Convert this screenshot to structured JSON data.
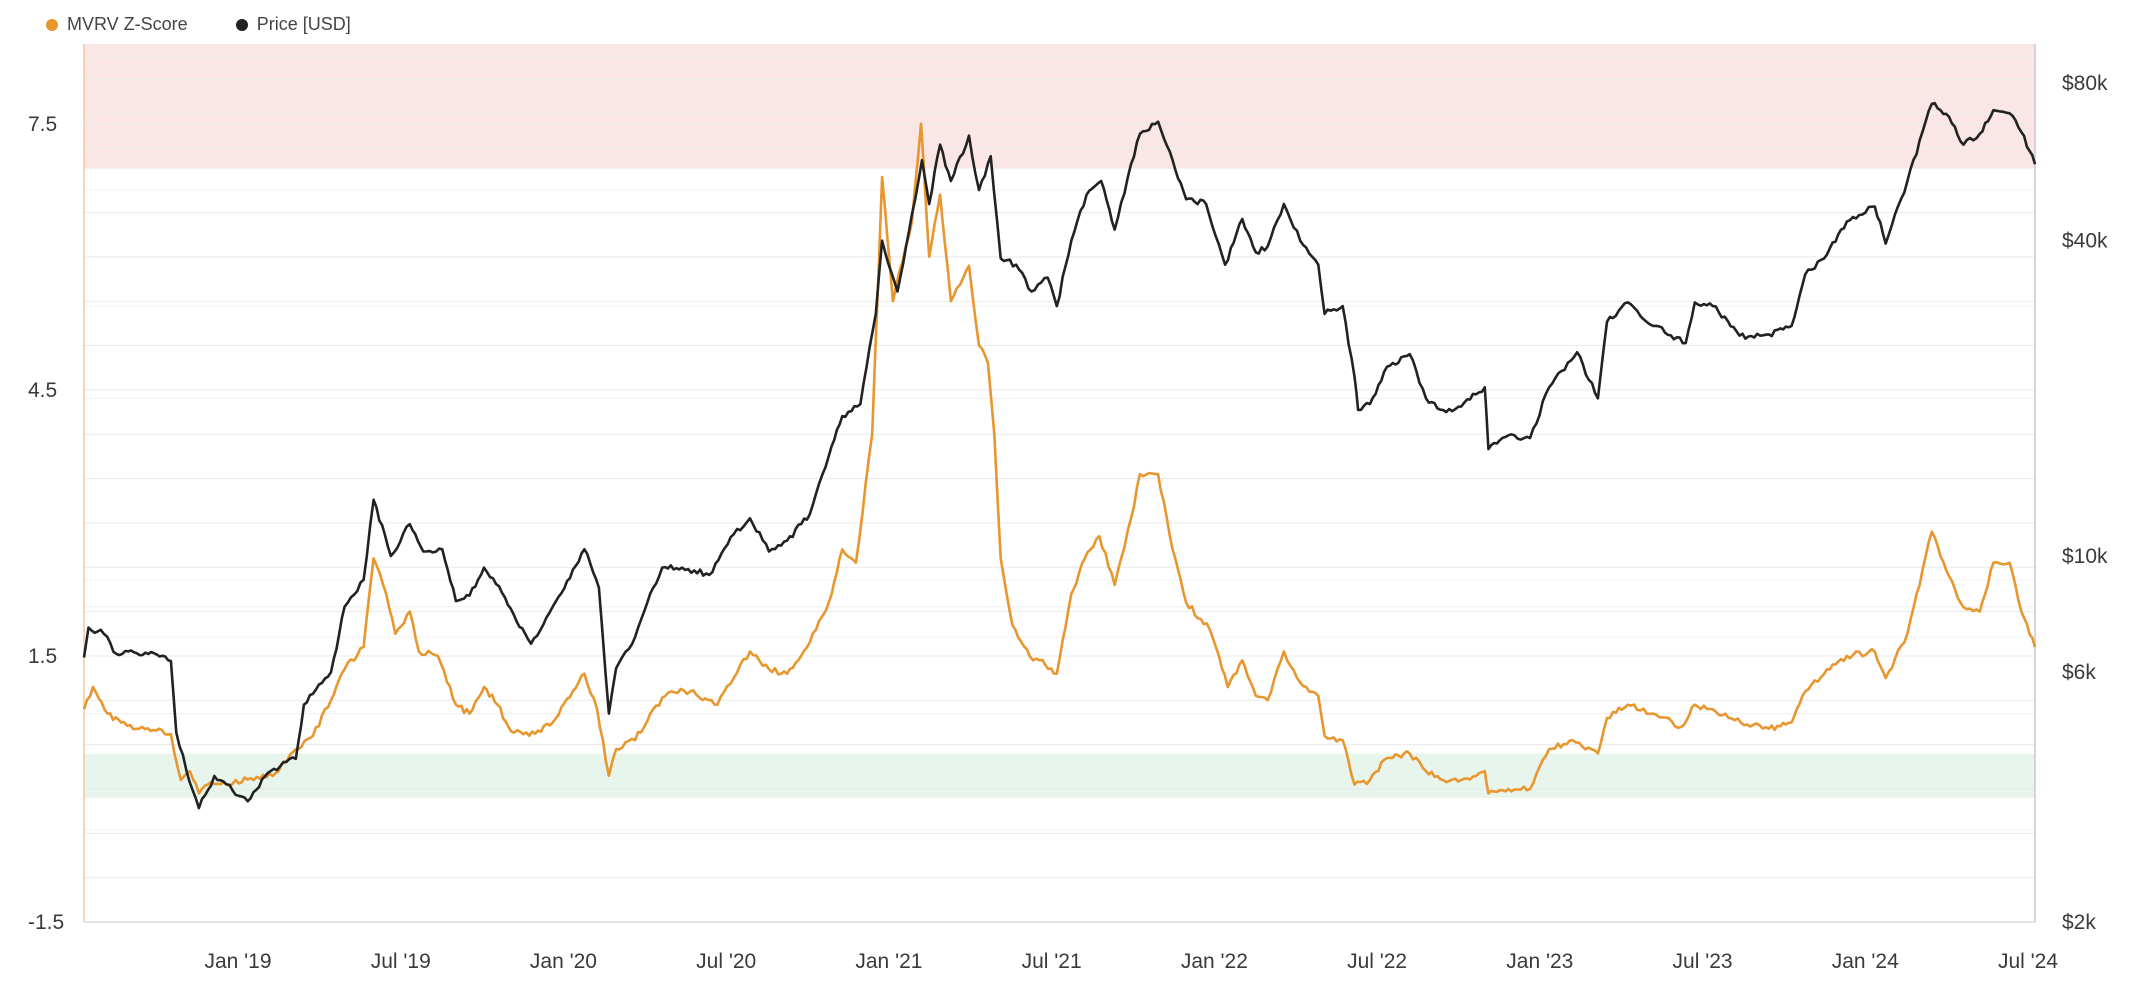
{
  "legend": {
    "items": [
      {
        "label": "MVRV Z-Score",
        "color": "#e8962e"
      },
      {
        "label": "Price [USD]",
        "color": "#222222"
      }
    ]
  },
  "chart_data": {
    "type": "line",
    "x_ticks": [
      "Jan '19",
      "Jul '19",
      "Jan '20",
      "Jul '20",
      "Jan '21",
      "Jul '21",
      "Jan '22",
      "Jul '22",
      "Jan '23",
      "Jul '23",
      "Jan '24",
      "Jul '24"
    ],
    "x_range": [
      "2018-08-10",
      "2024-07-05"
    ],
    "left_axis": {
      "ticks": [
        "7.5",
        "4.5",
        "1.5",
        "-1.5"
      ],
      "values": [
        7.5,
        4.5,
        1.5,
        -1.5
      ],
      "ylim": [
        -1.5,
        8.4
      ]
    },
    "right_axis": {
      "scale": "log",
      "ticks": [
        "$80k",
        "$40k",
        "$10k",
        "$6k",
        "$2k"
      ],
      "values": [
        80000,
        40000,
        10000,
        6000,
        2000
      ],
      "ylim": [
        2000,
        95000
      ]
    },
    "zones": [
      {
        "name": "overvalued",
        "from": 7.0,
        "to": 9.0,
        "color": "#fbe6e6"
      },
      {
        "name": "undervalued",
        "from": -0.1,
        "to": 0.4,
        "color": "#e8f5ec"
      }
    ],
    "series": [
      {
        "name": "MVRV Z-Score",
        "color": "#e8962e",
        "axis": "left",
        "points": [
          [
            "2018-08-10",
            0.9
          ],
          [
            "2018-08-20",
            1.15
          ],
          [
            "2018-09-05",
            0.85
          ],
          [
            "2018-09-20",
            0.75
          ],
          [
            "2018-10-10",
            0.68
          ],
          [
            "2018-11-01",
            0.68
          ],
          [
            "2018-11-14",
            0.62
          ],
          [
            "2018-11-25",
            0.1
          ],
          [
            "2018-12-05",
            0.2
          ],
          [
            "2018-12-15",
            -0.05
          ],
          [
            "2018-12-25",
            0.05
          ],
          [
            "2019-01-15",
            0.05
          ],
          [
            "2019-02-10",
            0.12
          ],
          [
            "2019-03-10",
            0.18
          ],
          [
            "2019-04-01",
            0.45
          ],
          [
            "2019-04-20",
            0.6
          ],
          [
            "2019-05-10",
            1.0
          ],
          [
            "2019-05-25",
            1.35
          ],
          [
            "2019-06-15",
            1.6
          ],
          [
            "2019-06-26",
            2.6
          ],
          [
            "2019-07-10",
            2.2
          ],
          [
            "2019-07-20",
            1.75
          ],
          [
            "2019-08-05",
            2.0
          ],
          [
            "2019-08-15",
            1.55
          ],
          [
            "2019-09-05",
            1.5
          ],
          [
            "2019-09-25",
            0.95
          ],
          [
            "2019-10-10",
            0.85
          ],
          [
            "2019-10-26",
            1.15
          ],
          [
            "2019-11-10",
            0.95
          ],
          [
            "2019-11-25",
            0.65
          ],
          [
            "2019-12-15",
            0.6
          ],
          [
            "2020-01-10",
            0.75
          ],
          [
            "2020-02-14",
            1.3
          ],
          [
            "2020-02-28",
            0.9
          ],
          [
            "2020-03-12",
            0.15
          ],
          [
            "2020-03-20",
            0.45
          ],
          [
            "2020-04-10",
            0.55
          ],
          [
            "2020-04-30",
            0.9
          ],
          [
            "2020-05-20",
            1.1
          ],
          [
            "2020-06-10",
            1.1
          ],
          [
            "2020-07-10",
            0.95
          ],
          [
            "2020-07-28",
            1.25
          ],
          [
            "2020-08-15",
            1.55
          ],
          [
            "2020-09-05",
            1.35
          ],
          [
            "2020-09-25",
            1.3
          ],
          [
            "2020-10-20",
            1.65
          ],
          [
            "2020-11-10",
            2.1
          ],
          [
            "2020-11-25",
            2.7
          ],
          [
            "2020-12-10",
            2.55
          ],
          [
            "2020-12-28",
            4.0
          ],
          [
            "2021-01-08",
            6.9
          ],
          [
            "2021-01-20",
            5.5
          ],
          [
            "2021-02-10",
            6.4
          ],
          [
            "2021-02-20",
            7.5
          ],
          [
            "2021-03-01",
            6.0
          ],
          [
            "2021-03-13",
            6.7
          ],
          [
            "2021-03-25",
            5.5
          ],
          [
            "2021-04-14",
            5.9
          ],
          [
            "2021-04-25",
            5.0
          ],
          [
            "2021-05-05",
            4.8
          ],
          [
            "2021-05-12",
            4.0
          ],
          [
            "2021-05-19",
            2.6
          ],
          [
            "2021-06-01",
            1.85
          ],
          [
            "2021-06-20",
            1.5
          ],
          [
            "2021-07-01",
            1.45
          ],
          [
            "2021-07-20",
            1.3
          ],
          [
            "2021-08-05",
            2.2
          ],
          [
            "2021-08-20",
            2.6
          ],
          [
            "2021-09-05",
            2.85
          ],
          [
            "2021-09-22",
            2.3
          ],
          [
            "2021-10-10",
            3.05
          ],
          [
            "2021-10-20",
            3.55
          ],
          [
            "2021-11-09",
            3.55
          ],
          [
            "2021-11-25",
            2.7
          ],
          [
            "2021-12-10",
            2.1
          ],
          [
            "2022-01-05",
            1.8
          ],
          [
            "2022-01-25",
            1.15
          ],
          [
            "2022-02-10",
            1.45
          ],
          [
            "2022-02-25",
            1.05
          ],
          [
            "2022-03-10",
            1.0
          ],
          [
            "2022-03-28",
            1.55
          ],
          [
            "2022-04-15",
            1.2
          ],
          [
            "2022-05-05",
            1.05
          ],
          [
            "2022-05-12",
            0.6
          ],
          [
            "2022-06-01",
            0.55
          ],
          [
            "2022-06-14",
            0.05
          ],
          [
            "2022-07-01",
            0.1
          ],
          [
            "2022-07-20",
            0.35
          ],
          [
            "2022-08-14",
            0.4
          ],
          [
            "2022-09-01",
            0.2
          ],
          [
            "2022-09-20",
            0.1
          ],
          [
            "2022-10-10",
            0.1
          ],
          [
            "2022-11-05",
            0.2
          ],
          [
            "2022-11-09",
            -0.05
          ],
          [
            "2022-12-01",
            0.0
          ],
          [
            "2022-12-25",
            0.0
          ],
          [
            "2023-01-15",
            0.45
          ],
          [
            "2023-02-10",
            0.55
          ],
          [
            "2023-03-10",
            0.4
          ],
          [
            "2023-03-20",
            0.8
          ],
          [
            "2023-04-12",
            0.95
          ],
          [
            "2023-05-10",
            0.85
          ],
          [
            "2023-06-10",
            0.7
          ],
          [
            "2023-06-25",
            0.95
          ],
          [
            "2023-07-15",
            0.9
          ],
          [
            "2023-08-15",
            0.75
          ],
          [
            "2023-09-15",
            0.68
          ],
          [
            "2023-10-10",
            0.75
          ],
          [
            "2023-10-25",
            1.1
          ],
          [
            "2023-11-15",
            1.3
          ],
          [
            "2023-12-10",
            1.5
          ],
          [
            "2024-01-10",
            1.55
          ],
          [
            "2024-01-22",
            1.25
          ],
          [
            "2024-02-15",
            1.75
          ],
          [
            "2024-03-13",
            2.9
          ],
          [
            "2024-04-01",
            2.4
          ],
          [
            "2024-04-17",
            2.05
          ],
          [
            "2024-05-05",
            2.0
          ],
          [
            "2024-05-20",
            2.55
          ],
          [
            "2024-06-07",
            2.55
          ],
          [
            "2024-06-20",
            2.0
          ],
          [
            "2024-07-05",
            1.6
          ]
        ]
      },
      {
        "name": "Price [USD]",
        "color": "#222222",
        "axis": "right",
        "points": [
          [
            "2018-08-10",
            6400
          ],
          [
            "2018-08-15",
            7300
          ],
          [
            "2018-09-01",
            7100
          ],
          [
            "2018-09-15",
            6500
          ],
          [
            "2018-10-01",
            6600
          ],
          [
            "2018-10-20",
            6500
          ],
          [
            "2018-11-14",
            6300
          ],
          [
            "2018-11-20",
            4600
          ],
          [
            "2018-12-01",
            3900
          ],
          [
            "2018-12-15",
            3300
          ],
          [
            "2019-01-01",
            3800
          ],
          [
            "2019-02-07",
            3400
          ],
          [
            "2019-03-01",
            3850
          ],
          [
            "2019-04-01",
            4100
          ],
          [
            "2019-04-10",
            5200
          ],
          [
            "2019-05-10",
            6000
          ],
          [
            "2019-05-25",
            8000
          ],
          [
            "2019-06-15",
            9000
          ],
          [
            "2019-06-26",
            12800
          ],
          [
            "2019-07-15",
            10000
          ],
          [
            "2019-08-05",
            11500
          ],
          [
            "2019-08-20",
            10200
          ],
          [
            "2019-09-10",
            10300
          ],
          [
            "2019-09-25",
            8200
          ],
          [
            "2019-10-10",
            8400
          ],
          [
            "2019-10-26",
            9500
          ],
          [
            "2019-11-15",
            8500
          ],
          [
            "2019-12-01",
            7500
          ],
          [
            "2019-12-17",
            6800
          ],
          [
            "2020-01-10",
            8000
          ],
          [
            "2020-02-14",
            10300
          ],
          [
            "2020-03-01",
            8700
          ],
          [
            "2020-03-12",
            5000
          ],
          [
            "2020-03-20",
            6100
          ],
          [
            "2020-04-10",
            7000
          ],
          [
            "2020-04-30",
            8700
          ],
          [
            "2020-05-10",
            9500
          ],
          [
            "2020-06-01",
            9500
          ],
          [
            "2020-07-01",
            9200
          ],
          [
            "2020-07-28",
            11000
          ],
          [
            "2020-08-15",
            11800
          ],
          [
            "2020-09-05",
            10200
          ],
          [
            "2020-09-25",
            10700
          ],
          [
            "2020-10-20",
            12000
          ],
          [
            "2020-11-10",
            15500
          ],
          [
            "2020-11-25",
            18500
          ],
          [
            "2020-12-15",
            19500
          ],
          [
            "2021-01-01",
            29000
          ],
          [
            "2021-01-08",
            40000
          ],
          [
            "2021-01-25",
            32000
          ],
          [
            "2021-02-10",
            45000
          ],
          [
            "2021-02-21",
            57000
          ],
          [
            "2021-03-01",
            47000
          ],
          [
            "2021-03-13",
            61000
          ],
          [
            "2021-03-25",
            52000
          ],
          [
            "2021-04-14",
            63500
          ],
          [
            "2021-04-25",
            50000
          ],
          [
            "2021-05-08",
            58000
          ],
          [
            "2021-05-19",
            37000
          ],
          [
            "2021-06-05",
            36000
          ],
          [
            "2021-06-22",
            32000
          ],
          [
            "2021-07-10",
            34000
          ],
          [
            "2021-07-20",
            30000
          ],
          [
            "2021-08-05",
            40000
          ],
          [
            "2021-08-22",
            49000
          ],
          [
            "2021-09-07",
            52000
          ],
          [
            "2021-09-22",
            42000
          ],
          [
            "2021-10-10",
            56000
          ],
          [
            "2021-10-20",
            64000
          ],
          [
            "2021-11-09",
            67500
          ],
          [
            "2021-11-25",
            57000
          ],
          [
            "2021-12-10",
            48000
          ],
          [
            "2022-01-01",
            47000
          ],
          [
            "2022-01-22",
            36000
          ],
          [
            "2022-02-10",
            44000
          ],
          [
            "2022-02-25",
            38000
          ],
          [
            "2022-03-10",
            39000
          ],
          [
            "2022-03-28",
            47000
          ],
          [
            "2022-04-15",
            40000
          ],
          [
            "2022-05-05",
            36000
          ],
          [
            "2022-05-12",
            29000
          ],
          [
            "2022-06-01",
            30000
          ],
          [
            "2022-06-14",
            22000
          ],
          [
            "2022-06-18",
            19000
          ],
          [
            "2022-07-01",
            19500
          ],
          [
            "2022-07-20",
            23000
          ],
          [
            "2022-08-14",
            24300
          ],
          [
            "2022-09-01",
            20000
          ],
          [
            "2022-09-20",
            19000
          ],
          [
            "2022-10-10",
            19300
          ],
          [
            "2022-11-05",
            21000
          ],
          [
            "2022-11-09",
            16000
          ],
          [
            "2022-12-01",
            17000
          ],
          [
            "2022-12-25",
            16800
          ],
          [
            "2023-01-15",
            21000
          ],
          [
            "2023-02-15",
            24500
          ],
          [
            "2023-03-10",
            20000
          ],
          [
            "2023-03-20",
            28000
          ],
          [
            "2023-04-12",
            30500
          ],
          [
            "2023-05-10",
            27500
          ],
          [
            "2023-06-15",
            25500
          ],
          [
            "2023-06-25",
            30500
          ],
          [
            "2023-07-15",
            30000
          ],
          [
            "2023-08-20",
            26000
          ],
          [
            "2023-09-15",
            26500
          ],
          [
            "2023-10-10",
            27500
          ],
          [
            "2023-10-25",
            34500
          ],
          [
            "2023-11-15",
            37000
          ],
          [
            "2023-12-10",
            43500
          ],
          [
            "2024-01-10",
            46500
          ],
          [
            "2024-01-22",
            39500
          ],
          [
            "2024-02-15",
            52000
          ],
          [
            "2024-03-13",
            73000
          ],
          [
            "2024-04-01",
            69000
          ],
          [
            "2024-04-17",
            61000
          ],
          [
            "2024-05-05",
            64000
          ],
          [
            "2024-05-20",
            71000
          ],
          [
            "2024-06-07",
            70000
          ],
          [
            "2024-06-20",
            64500
          ],
          [
            "2024-07-05",
            56000
          ]
        ]
      }
    ]
  }
}
